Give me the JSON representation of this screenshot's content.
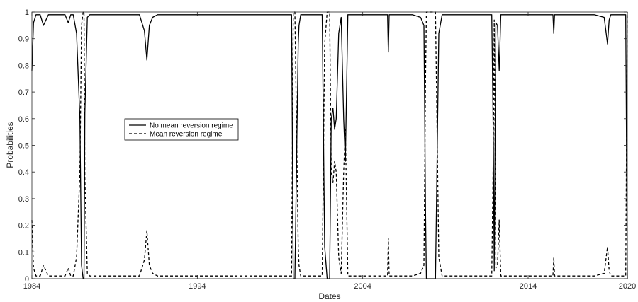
{
  "chart_data": {
    "type": "line",
    "title": "",
    "xlabel": "Dates",
    "ylabel": "Probabilities",
    "xlim": [
      1984,
      2020
    ],
    "ylim": [
      0,
      1
    ],
    "x_ticks": [
      "1984",
      "1994",
      "2004",
      "2014",
      "2020"
    ],
    "x_tick_values": [
      1984,
      1994,
      2004,
      2014,
      2020
    ],
    "y_ticks": [
      "0",
      "0.1",
      "0.2",
      "0.3",
      "0.4",
      "0.5",
      "0.6",
      "0.7",
      "0.8",
      "0.9",
      "1"
    ],
    "y_tick_values": [
      0,
      0.1,
      0.2,
      0.3,
      0.4,
      0.5,
      0.6,
      0.7,
      0.8,
      0.9,
      1
    ],
    "grid": false,
    "legend_position": "center-left",
    "series": [
      {
        "name": "No mean reversion regime",
        "style": "solid",
        "color": "#000000",
        "x": [
          1984.0,
          1984.1,
          1984.25,
          1984.4,
          1984.5,
          1984.7,
          1985.0,
          1985.3,
          1985.6,
          1985.8,
          1986.0,
          1986.2,
          1986.35,
          1986.5,
          1986.7,
          1986.9,
          1987.0,
          1987.1,
          1987.15,
          1987.2,
          1987.35,
          1987.5,
          1988.0,
          1989.0,
          1990.0,
          1990.5,
          1990.8,
          1990.95,
          1991.1,
          1991.3,
          1991.6,
          1992.0,
          1993.0,
          1994.0,
          1995.0,
          1996.0,
          1997.0,
          1998.0,
          1999.0,
          1999.7,
          1999.75,
          1999.8,
          1999.9,
          2000.1,
          2000.15,
          2000.25,
          2000.35,
          2000.45,
          2000.6,
          2000.8,
          2001.0,
          2001.3,
          2001.55,
          2001.7,
          2001.85,
          2002.0,
          2002.1,
          2002.2,
          2002.3,
          2002.4,
          2002.55,
          2002.7,
          2002.85,
          2002.95,
          2003.1,
          2003.3,
          2003.5,
          2003.7,
          2003.9,
          2004.0,
          2005.0,
          2005.5,
          2005.55,
          2005.6,
          2006.0,
          2007.0,
          2007.5,
          2007.7,
          2007.8,
          2007.85,
          2007.9,
          2008.0,
          2008.4,
          2008.6,
          2008.8,
          2008.95,
          2009.1,
          2009.3,
          2009.6,
          2010.0,
          2011.0,
          2011.8,
          2011.9,
          2011.95,
          2012.05,
          2012.15,
          2012.25,
          2012.35,
          2012.5,
          2012.6,
          2012.7,
          2013.0,
          2014.0,
          2015.0,
          2015.5,
          2015.55,
          2015.6,
          2016.0,
          2017.0,
          2018.0,
          2018.6,
          2018.8,
          2018.9,
          2019.0,
          2019.2,
          2019.4,
          2019.8,
          2019.9,
          2019.95,
          2020.0
        ],
        "y": [
          0.78,
          0.96,
          0.99,
          0.99,
          0.99,
          0.95,
          0.99,
          0.99,
          0.99,
          0.99,
          0.99,
          0.96,
          0.99,
          0.99,
          0.92,
          0.6,
          0.05,
          0.0,
          0.0,
          0.62,
          0.98,
          0.99,
          0.99,
          0.99,
          0.99,
          0.99,
          0.93,
          0.82,
          0.95,
          0.98,
          0.99,
          0.99,
          0.99,
          0.99,
          0.99,
          0.99,
          0.99,
          0.99,
          0.99,
          0.99,
          0.5,
          0.0,
          0.0,
          0.88,
          0.95,
          0.99,
          0.99,
          0.99,
          0.99,
          0.99,
          0.99,
          0.99,
          0.99,
          0.12,
          0.0,
          0.0,
          0.6,
          0.64,
          0.56,
          0.6,
          0.92,
          0.98,
          0.6,
          0.44,
          0.99,
          0.99,
          0.99,
          0.99,
          0.99,
          0.99,
          0.99,
          0.99,
          0.85,
          0.99,
          0.99,
          0.99,
          0.98,
          0.95,
          0.25,
          0.0,
          0.0,
          0.0,
          0.0,
          0.92,
          0.99,
          0.99,
          0.99,
          0.99,
          0.99,
          0.99,
          0.99,
          0.99,
          0.5,
          0.03,
          0.96,
          0.95,
          0.78,
          0.99,
          0.99,
          0.99,
          0.99,
          0.99,
          0.99,
          0.99,
          0.99,
          0.92,
          0.99,
          0.99,
          0.99,
          0.99,
          0.98,
          0.88,
          0.97,
          0.99,
          0.99,
          0.99,
          0.99,
          0.99,
          0.5,
          0.0
        ]
      },
      {
        "name": "Mean reversion regime",
        "style": "dashed",
        "color": "#000000",
        "x": [
          1984.0,
          1984.1,
          1984.25,
          1984.4,
          1984.5,
          1984.7,
          1985.0,
          1985.3,
          1985.6,
          1985.8,
          1986.0,
          1986.2,
          1986.35,
          1986.5,
          1986.7,
          1986.9,
          1987.0,
          1987.1,
          1987.15,
          1987.2,
          1987.35,
          1987.5,
          1988.0,
          1989.0,
          1990.0,
          1990.5,
          1990.8,
          1990.95,
          1991.1,
          1991.3,
          1991.6,
          1992.0,
          1993.0,
          1994.0,
          1995.0,
          1996.0,
          1997.0,
          1998.0,
          1999.0,
          1999.7,
          1999.75,
          1999.8,
          1999.9,
          2000.1,
          2000.15,
          2000.25,
          2000.35,
          2000.45,
          2000.6,
          2000.8,
          2001.0,
          2001.3,
          2001.55,
          2001.7,
          2001.85,
          2002.0,
          2002.1,
          2002.2,
          2002.3,
          2002.4,
          2002.55,
          2002.7,
          2002.85,
          2002.95,
          2003.1,
          2003.3,
          2003.5,
          2003.7,
          2003.9,
          2004.0,
          2005.0,
          2005.5,
          2005.55,
          2005.6,
          2006.0,
          2007.0,
          2007.5,
          2007.7,
          2007.8,
          2007.85,
          2007.9,
          2008.0,
          2008.4,
          2008.6,
          2008.8,
          2008.95,
          2009.1,
          2009.3,
          2009.6,
          2010.0,
          2011.0,
          2011.8,
          2011.9,
          2011.95,
          2012.05,
          2012.15,
          2012.25,
          2012.35,
          2012.5,
          2012.6,
          2012.7,
          2013.0,
          2014.0,
          2015.0,
          2015.5,
          2015.55,
          2015.6,
          2016.0,
          2017.0,
          2018.0,
          2018.6,
          2018.8,
          2018.9,
          2019.0,
          2019.2,
          2019.4,
          2019.8,
          2019.9,
          2019.95,
          2020.0
        ],
        "y": [
          0.22,
          0.04,
          0.01,
          0.01,
          0.01,
          0.05,
          0.01,
          0.01,
          0.01,
          0.01,
          0.01,
          0.04,
          0.01,
          0.01,
          0.08,
          0.4,
          0.95,
          1.0,
          1.0,
          0.38,
          0.02,
          0.01,
          0.01,
          0.01,
          0.01,
          0.01,
          0.07,
          0.18,
          0.05,
          0.02,
          0.01,
          0.01,
          0.01,
          0.01,
          0.01,
          0.01,
          0.01,
          0.01,
          0.01,
          0.01,
          0.5,
          1.0,
          1.0,
          0.12,
          0.05,
          0.01,
          0.01,
          0.01,
          0.01,
          0.01,
          0.01,
          0.01,
          0.01,
          0.88,
          1.0,
          1.0,
          0.4,
          0.36,
          0.44,
          0.4,
          0.08,
          0.02,
          0.4,
          0.56,
          0.01,
          0.01,
          0.01,
          0.01,
          0.01,
          0.01,
          0.01,
          0.01,
          0.15,
          0.01,
          0.01,
          0.01,
          0.02,
          0.05,
          0.75,
          1.0,
          1.0,
          1.0,
          1.0,
          0.08,
          0.01,
          0.01,
          0.01,
          0.01,
          0.01,
          0.01,
          0.01,
          0.01,
          0.5,
          0.97,
          0.04,
          0.05,
          0.22,
          0.01,
          0.01,
          0.01,
          0.01,
          0.01,
          0.01,
          0.01,
          0.01,
          0.08,
          0.01,
          0.01,
          0.01,
          0.01,
          0.02,
          0.12,
          0.03,
          0.01,
          0.01,
          0.01,
          0.01,
          0.01,
          0.5,
          1.0
        ]
      }
    ]
  }
}
